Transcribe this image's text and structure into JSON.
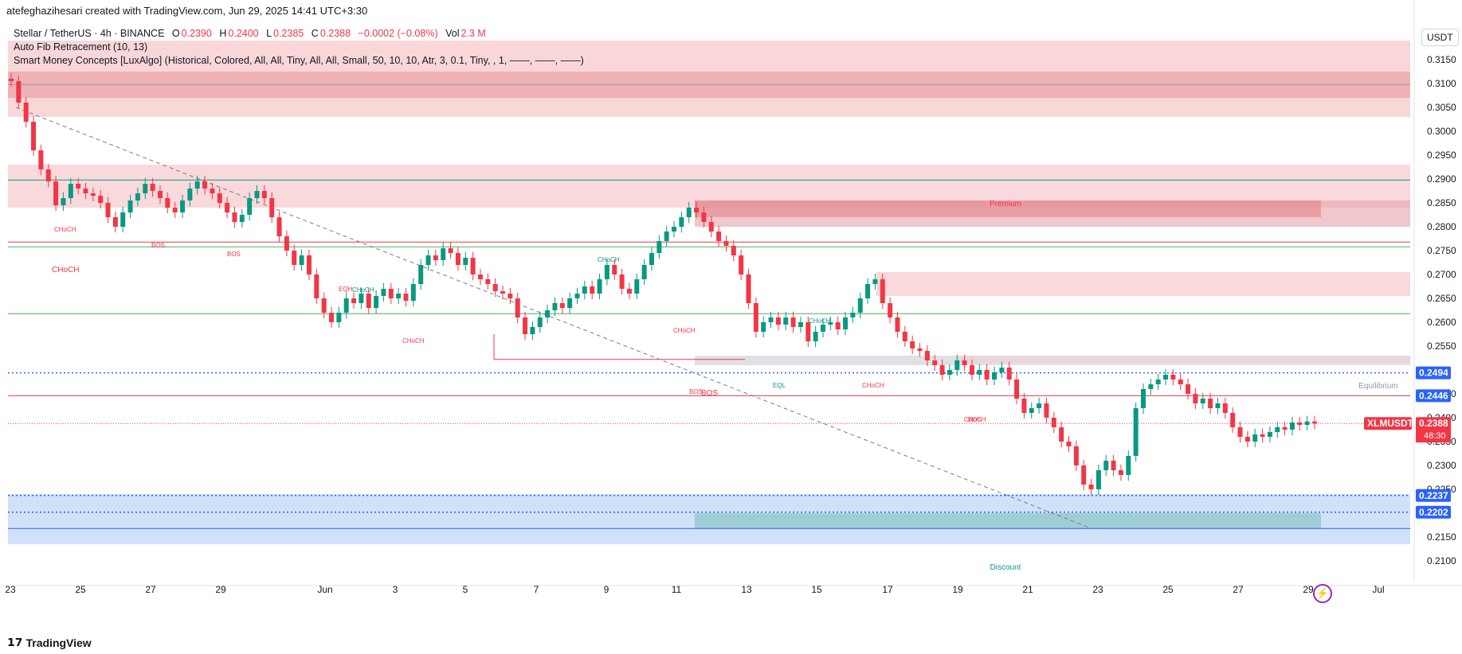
{
  "header": {
    "credit": "atefeghazihesari created with TradingView.com, Jun 29, 2025 14:41 UTC+3:30",
    "symbol_line": "Stellar / TetherUS · 4h · BINANCE",
    "o_label": "O",
    "o_value": "0.2390",
    "h_label": "H",
    "h_value": "0.2400",
    "l_label": "L",
    "l_value": "0.2385",
    "c_label": "C",
    "c_value": "0.2388",
    "change": "−0.0002 (−0.08%)",
    "vol_label": "Vol",
    "vol_value": "2.3 M",
    "indicator1": "Auto Fib Retracement (10, 13)",
    "indicator2": "Smart Money Concepts [LuxAlgo] (Historical, Colored, All, All, Tiny, All, All, Small, 50, 10, 10, Atr, 3, 0.1, Tiny, , 1, ——, ——, ——)"
  },
  "currency_button": "USDT",
  "footer_logo": "TradingView",
  "colors": {
    "up": "#089981",
    "down": "#f23645",
    "blue": "#2962ff",
    "premium": "#f7c9cc",
    "discount": "#c9dcf9"
  },
  "chart_data": {
    "type": "candlestick",
    "symbol": "XLMUSDT",
    "ylim": [
      0.2075,
      0.3205
    ],
    "y_ticks": [
      "0.3150",
      "0.3100",
      "0.3050",
      "0.3000",
      "0.2950",
      "0.2900",
      "0.2850",
      "0.2800",
      "0.2750",
      "0.2700",
      "0.2650",
      "0.2600",
      "0.2550",
      "0.2450",
      "0.2400",
      "0.2350",
      "0.2300",
      "0.2250",
      "0.2150",
      "0.2100"
    ],
    "x_ticks": [
      "23",
      "25",
      "27",
      "29",
      "Jun",
      "3",
      "5",
      "7",
      "9",
      "11",
      "13",
      "15",
      "17",
      "19",
      "21",
      "23",
      "25",
      "27",
      "29",
      "Jul"
    ],
    "price_labels": [
      {
        "value": "0.2494",
        "color": "#2962ff"
      },
      {
        "value": "0.2446",
        "color": "#2962ff"
      },
      {
        "value": "0.2237",
        "color": "#2962ff"
      },
      {
        "value": "0.2202",
        "color": "#2962ff"
      }
    ],
    "last_price": {
      "symbol": "XLMUSDT",
      "value": "0.2388",
      "countdown": "48:30"
    },
    "zone_labels": {
      "premium": "Premium",
      "equilibrium": "Equilibrium",
      "discount": "Discount"
    },
    "annotations": [
      "CHoCH",
      "BOS",
      "BOS",
      "CHoCH",
      "EQH",
      "CHoCH",
      "CHoCH",
      "CHoCH",
      "CHoCH",
      "BOS",
      "EQL",
      "CHoCH",
      "CHoCH",
      "BOS"
    ],
    "ohlc_close_path": [
      0.3105,
      0.306,
      0.302,
      0.296,
      0.292,
      0.2895,
      0.2845,
      0.286,
      0.289,
      0.288,
      0.287,
      0.2865,
      0.285,
      0.282,
      0.28,
      0.283,
      0.2855,
      0.287,
      0.289,
      0.2875,
      0.286,
      0.284,
      0.283,
      0.2855,
      0.288,
      0.2895,
      0.288,
      0.287,
      0.285,
      0.283,
      0.281,
      0.2825,
      0.286,
      0.2875,
      0.286,
      0.282,
      0.278,
      0.275,
      0.272,
      0.274,
      0.27,
      0.265,
      0.262,
      0.26,
      0.262,
      0.265,
      0.264,
      0.266,
      0.263,
      0.2655,
      0.267,
      0.265,
      0.266,
      0.2645,
      0.268,
      0.272,
      0.274,
      0.273,
      0.2755,
      0.2745,
      0.272,
      0.2735,
      0.27,
      0.269,
      0.268,
      0.2665,
      0.266,
      0.265,
      0.261,
      0.2575,
      0.259,
      0.261,
      0.2625,
      0.264,
      0.263,
      0.265,
      0.266,
      0.2675,
      0.266,
      0.269,
      0.272,
      0.27,
      0.267,
      0.266,
      0.269,
      0.272,
      0.2745,
      0.277,
      0.279,
      0.28,
      0.282,
      0.284,
      0.283,
      0.281,
      0.279,
      0.277,
      0.276,
      0.274,
      0.27,
      0.264,
      0.258,
      0.26,
      0.261,
      0.2595,
      0.261,
      0.259,
      0.26,
      0.256,
      0.258,
      0.2595,
      0.26,
      0.2585,
      0.261,
      0.262,
      0.265,
      0.268,
      0.269,
      0.264,
      0.261,
      0.258,
      0.256,
      0.2545,
      0.254,
      0.252,
      0.251,
      0.249,
      0.25,
      0.252,
      0.251,
      0.249,
      0.25,
      0.248,
      0.2495,
      0.2505,
      0.248,
      0.244,
      0.241,
      0.242,
      0.243,
      0.24,
      0.238,
      0.235,
      0.234,
      0.23,
      0.226,
      0.225,
      0.229,
      0.231,
      0.229,
      0.228,
      0.232,
      0.242,
      0.246,
      0.247,
      0.248,
      0.249,
      0.248,
      0.247,
      0.245,
      0.243,
      0.244,
      0.242,
      0.243,
      0.241,
      0.238,
      0.236,
      0.235,
      0.2365,
      0.236,
      0.237,
      0.238,
      0.2375,
      0.239,
      0.2385,
      0.2392,
      0.2388
    ]
  }
}
